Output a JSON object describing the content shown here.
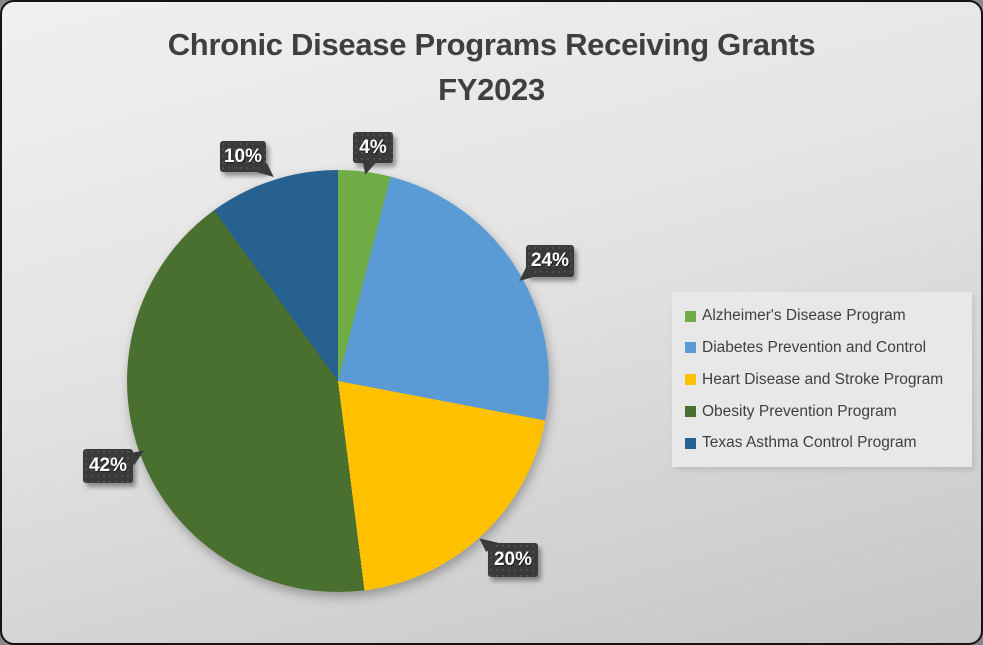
{
  "title": {
    "line1": "Chronic Disease Programs Receiving Grants",
    "line2": "FY2023"
  },
  "colors": {
    "callout_bg": "#3A3A3A",
    "title_text": "#3F3F3F",
    "legend_bg": "#E8E8E8"
  },
  "chart_data": {
    "type": "pie",
    "title": "Chronic Disease Programs Receiving Grants FY2023",
    "start_angle_deg": 0,
    "direction": "clockwise",
    "legend_position": "right",
    "slices": [
      {
        "label": "Alzheimer's Disease Program",
        "value_pct": 4,
        "data_label": "4%",
        "color": "#70AD47"
      },
      {
        "label": "Diabetes Prevention and Control",
        "value_pct": 24,
        "data_label": "24%",
        "color": "#5B9BD5"
      },
      {
        "label": "Heart Disease and Stroke Program",
        "value_pct": 20,
        "data_label": "20%",
        "color": "#FFC000"
      },
      {
        "label": "Obesity Prevention Program",
        "value_pct": 42,
        "data_label": "42%",
        "color": "#4A7030"
      },
      {
        "label": "Texas Asthma Control Program",
        "value_pct": 10,
        "data_label": "10%",
        "color": "#27618F"
      }
    ]
  }
}
